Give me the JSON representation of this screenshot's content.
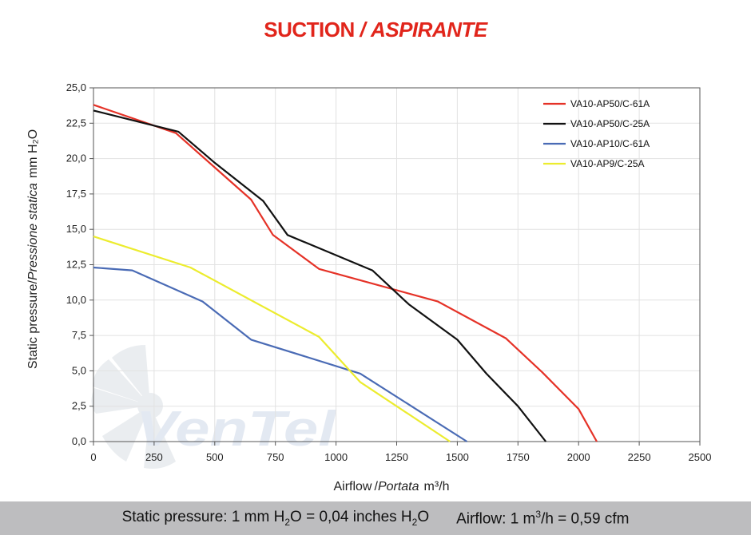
{
  "title": {
    "main": "SUCTION",
    "sep": "/",
    "italic": "ASPIRANTE"
  },
  "chart_data": {
    "type": "line",
    "xlabel": {
      "plain": "Airflow",
      "sep": "/",
      "italic": "Portata",
      "unit": "m³/h"
    },
    "ylabel": {
      "plain": "Static pressure",
      "sep": "/",
      "italic": "Pressione statica",
      "unit": "mm H₂O"
    },
    "xlim": [
      0,
      2500
    ],
    "ylim": [
      0,
      25
    ],
    "xticks": [
      0,
      250,
      500,
      750,
      1000,
      1250,
      1500,
      1750,
      2000,
      2250,
      2500
    ],
    "xtick_labels": [
      "0",
      "250",
      "500",
      "750",
      "1000",
      "1250",
      "1500",
      "1750",
      "2000",
      "2250",
      "2500"
    ],
    "yticks": [
      0,
      2.5,
      5,
      7.5,
      10,
      12.5,
      15,
      17.5,
      20,
      22.5,
      25
    ],
    "ytick_labels": [
      "0,0",
      "2,5",
      "5,0",
      "7,5",
      "10,0",
      "12,5",
      "15,0",
      "17,5",
      "20,0",
      "22,5",
      "25,0"
    ],
    "grid": true,
    "legend_position": "top-right",
    "series": [
      {
        "name": "VA10-AP50/C-61A",
        "color": "#e53227",
        "points": [
          [
            0,
            23.8
          ],
          [
            340,
            21.8
          ],
          [
            650,
            17.1
          ],
          [
            740,
            14.6
          ],
          [
            930,
            12.2
          ],
          [
            1420,
            9.9
          ],
          [
            1700,
            7.3
          ],
          [
            1850,
            4.9
          ],
          [
            2000,
            2.3
          ],
          [
            2075,
            0
          ]
        ]
      },
      {
        "name": "VA10-AP50/C-25A",
        "color": "#111111",
        "points": [
          [
            0,
            23.4
          ],
          [
            350,
            21.9
          ],
          [
            500,
            19.7
          ],
          [
            700,
            17.0
          ],
          [
            800,
            14.6
          ],
          [
            1150,
            12.1
          ],
          [
            1300,
            9.7
          ],
          [
            1500,
            7.2
          ],
          [
            1620,
            4.8
          ],
          [
            1750,
            2.5
          ],
          [
            1865,
            0
          ]
        ]
      },
      {
        "name": "VA10-AP10/C-61A",
        "color": "#4a6bb5",
        "points": [
          [
            0,
            12.3
          ],
          [
            160,
            12.1
          ],
          [
            450,
            9.9
          ],
          [
            650,
            7.2
          ],
          [
            1100,
            4.8
          ],
          [
            1540,
            0
          ]
        ]
      },
      {
        "name": "VA10-AP9/C-25A",
        "color": "#ecec2e",
        "points": [
          [
            0,
            14.5
          ],
          [
            400,
            12.3
          ],
          [
            930,
            7.4
          ],
          [
            1100,
            4.2
          ],
          [
            1470,
            0
          ]
        ]
      }
    ]
  },
  "watermark": {
    "text": "VenTel"
  },
  "footer": {
    "pressure_label": "Static pressure: 1 mm H",
    "pressure_sub": "2",
    "pressure_mid": "O = 0,04 inches H",
    "pressure_sub2": "2",
    "pressure_end": "O",
    "airflow_label": "Airflow: 1 m",
    "airflow_sup": "3",
    "airflow_end": "/h = 0,59 cfm"
  }
}
